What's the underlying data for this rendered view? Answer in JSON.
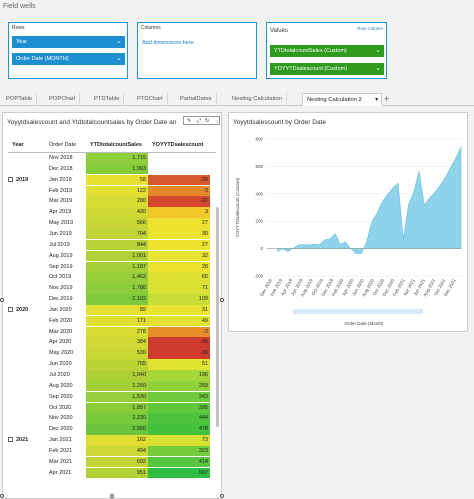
{
  "field_wells": {
    "label": "Field wells",
    "rows": {
      "title": "Rows",
      "items": [
        "Year",
        "Order Date (MONTH)"
      ]
    },
    "columns": {
      "title": "Columns",
      "add_text": "Add dimensions here"
    },
    "values": {
      "title": "Values",
      "toggle": "Row  Column",
      "items": [
        "YTDtotalcountSales (Custom)",
        "YOYYTDsalescount (Custom)"
      ]
    }
  },
  "tabs": [
    {
      "label": "POPTable"
    },
    {
      "label": "POPChart"
    },
    {
      "label": "PTDTable"
    },
    {
      "label": "PTDChart"
    },
    {
      "label": "PartialDates"
    },
    {
      "label": "Nesting Calculation"
    },
    {
      "label": "Nesting Calculation 2"
    }
  ],
  "tab_add": "+",
  "tab_more": "▾",
  "table_visual": {
    "title": "Yoyytdsalescount and Ytdtotalcountsales by Order Date an",
    "toolbar": {
      "edit": "✎",
      "expand": "⤢",
      "more": "⋮"
    },
    "headers": [
      "Year",
      "Order Date",
      "YTDtotalcountSales",
      "YOYYTDsalescount"
    ],
    "rows": [
      {
        "year": "",
        "date": "Nov 2018",
        "v1": "1,715",
        "v2": "",
        "c1": "#8fce3c",
        "c2": "#ffffff"
      },
      {
        "year": "",
        "date": "Dec 2018",
        "v1": "1,993",
        "v2": "",
        "c1": "#84cb3a",
        "c2": "#ffffff"
      },
      {
        "year": "2019",
        "date": "Jan 2019",
        "v1": "58",
        "v2": "-20",
        "c1": "#e8e033",
        "c2": "#d4592d",
        "exp": "−"
      },
      {
        "year": "",
        "date": "Feb 2019",
        "v1": "122",
        "v2": "-3",
        "c1": "#e3df33",
        "c2": "#e2892b"
      },
      {
        "year": "",
        "date": "Mar 2019",
        "v1": "280",
        "v2": "-22",
        "c1": "#d7dc34",
        "c2": "#d4472f"
      },
      {
        "year": "",
        "date": "Apr 2019",
        "v1": "420",
        "v2": "3",
        "c1": "#cfd934",
        "c2": "#f1c72a"
      },
      {
        "year": "",
        "date": "May 2019",
        "v1": "566",
        "v2": "27",
        "c1": "#c7d635",
        "c2": "#eee130"
      },
      {
        "year": "",
        "date": "Jun 2019",
        "v1": "704",
        "v2": "30",
        "c1": "#bfd436",
        "c2": "#ece230"
      },
      {
        "year": "",
        "date": "Jul 2019",
        "v1": "844",
        "v2": "27",
        "c1": "#b7d237",
        "c2": "#eee130"
      },
      {
        "year": "",
        "date": "Aug 2019",
        "v1": "1,001",
        "v2": "32",
        "c1": "#afd037",
        "c2": "#ebe331"
      },
      {
        "year": "",
        "date": "Sep 2019",
        "v1": "1,187",
        "v2": "28",
        "c1": "#a5cf38",
        "c2": "#ede130"
      },
      {
        "year": "",
        "date": "Oct 2019",
        "v1": "1,462",
        "v2": "65",
        "c1": "#98ce3a",
        "c2": "#dde234"
      },
      {
        "year": "",
        "date": "Nov 2019",
        "v1": "1,786",
        "v2": "71",
        "c1": "#8bcd3b",
        "c2": "#d8e134"
      },
      {
        "year": "",
        "date": "Dec 2019",
        "v1": "2,102",
        "v2": "109",
        "c1": "#7eca3c",
        "c2": "#c8dd36"
      },
      {
        "year": "2020",
        "date": "Jan 2020",
        "v1": "89",
        "v2": "31",
        "c1": "#e6e033",
        "c2": "#ebe331",
        "exp": "−"
      },
      {
        "year": "",
        "date": "Feb 2020",
        "v1": "171",
        "v2": "49",
        "c1": "#e1de33",
        "c2": "#e3e232"
      },
      {
        "year": "",
        "date": "Mar 2020",
        "v1": "278",
        "v2": "-2",
        "c1": "#d8dc34",
        "c2": "#e68e2a"
      },
      {
        "year": "",
        "date": "Apr 2020",
        "v1": "384",
        "v2": "-36",
        "c1": "#d1da34",
        "c2": "#cf3b2f"
      },
      {
        "year": "",
        "date": "May 2020",
        "v1": "530",
        "v2": "-36",
        "c1": "#c9d735",
        "c2": "#cf3b2f"
      },
      {
        "year": "",
        "date": "Jun 2020",
        "v1": "755",
        "v2": "51",
        "c1": "#bcd336",
        "c2": "#e2e232"
      },
      {
        "year": "",
        "date": "Jul 2020",
        "v1": "1,040",
        "v2": "196",
        "c1": "#aed037",
        "c2": "#a7d638"
      },
      {
        "year": "",
        "date": "Aug 2020",
        "v1": "1,260",
        "v2": "259",
        "c1": "#a2cf38",
        "c2": "#8ed23a"
      },
      {
        "year": "",
        "date": "Sep 2020",
        "v1": "1,530",
        "v2": "343",
        "c1": "#95ce3a",
        "c2": "#70cb3c"
      },
      {
        "year": "",
        "date": "Oct 2020",
        "v1": "1,857",
        "v2": "395",
        "c1": "#88cc3b",
        "c2": "#5ec83d"
      },
      {
        "year": "",
        "date": "Nov 2020",
        "v1": "2,230",
        "v2": "444",
        "c1": "#79c93c",
        "c2": "#4ec43e"
      },
      {
        "year": "",
        "date": "Dec 2020",
        "v1": "2,580",
        "v2": "478",
        "c1": "#6bc63d",
        "c2": "#44c23f"
      },
      {
        "year": "2021",
        "date": "Jan 2021",
        "v1": "162",
        "v2": "73",
        "c1": "#e1de33",
        "c2": "#d7e134",
        "exp": "−"
      },
      {
        "year": "",
        "date": "Feb 2021",
        "v1": "494",
        "v2": "323",
        "c1": "#cbd835",
        "c2": "#75cc3c"
      },
      {
        "year": "",
        "date": "Mar 2021",
        "v1": "692",
        "v2": "414",
        "c1": "#c0d436",
        "c2": "#57c63e"
      },
      {
        "year": "",
        "date": "Apr 2021",
        "v1": "951",
        "v2": "567",
        "c1": "#b2d137",
        "c2": "#2fbd41"
      }
    ]
  },
  "chart_visual": {
    "title": "Yoyytdsalescount by Order Date",
    "xlabel": "Order Date (Month)",
    "ylabel": "YOYYTDsalescount (Custom)"
  },
  "chart_data": {
    "type": "area",
    "color": "#8fd3ea",
    "ylim": [
      -200,
      800
    ],
    "yticks": [
      -200,
      0,
      200,
      400,
      600,
      800
    ],
    "xtick_labels": [
      "Dec 2018",
      "Feb 2019",
      "Apr 2019",
      "Jun 2019",
      "Aug 2019",
      "Oct 2019",
      "Dec 2019",
      "Feb 2020",
      "Apr 2020",
      "Jun 2020",
      "Aug 2020",
      "Oct 2020",
      "Dec 2020",
      "Feb 2021",
      "Apr 2021",
      "Jun 2021",
      "Aug 2021",
      "Oct 2021",
      "Dec 2021"
    ],
    "x": [
      "Nov 2018",
      "Dec 2018",
      "Jan 2019",
      "Feb 2019",
      "Mar 2019",
      "Apr 2019",
      "May 2019",
      "Jun 2019",
      "Jul 2019",
      "Aug 2019",
      "Sep 2019",
      "Oct 2019",
      "Nov 2019",
      "Dec 2019",
      "Jan 2020",
      "Feb 2020",
      "Mar 2020",
      "Apr 2020",
      "May 2020",
      "Jun 2020",
      "Jul 2020",
      "Aug 2020",
      "Sep 2020",
      "Oct 2020",
      "Nov 2020",
      "Dec 2020",
      "Jan 2021",
      "Feb 2021",
      "Mar 2021",
      "Apr 2021",
      "May 2021",
      "Jun 2021",
      "Jul 2021",
      "Aug 2021",
      "Sep 2021",
      "Oct 2021",
      "Nov 2021",
      "Dec 2021"
    ],
    "y": [
      null,
      null,
      -20,
      -3,
      -22,
      3,
      27,
      30,
      27,
      32,
      28,
      65,
      71,
      109,
      31,
      49,
      -2,
      -36,
      -36,
      51,
      196,
      259,
      343,
      395,
      444,
      478,
      73,
      323,
      414,
      567,
      320,
      370,
      410,
      460,
      520,
      590,
      660,
      740
    ]
  }
}
